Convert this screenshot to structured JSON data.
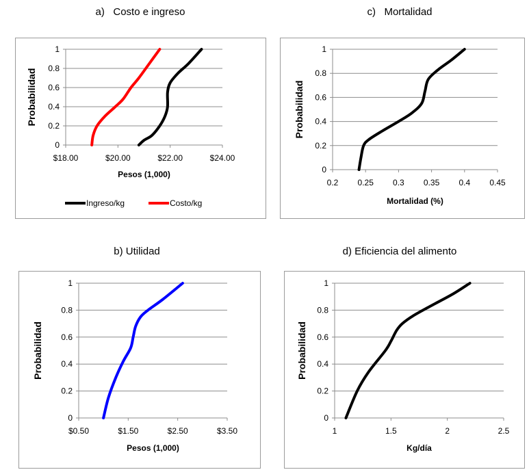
{
  "panels": [
    {
      "title": "a)   Costo e ingreso"
    },
    {
      "title": "c)   Mortalidad"
    },
    {
      "title": "b) Utilidad"
    },
    {
      "title": "d) Eficiencia del alimento"
    }
  ],
  "chart_data": [
    {
      "type": "line",
      "title": "a)   Costo e ingreso",
      "xlabel": "Pesos (1,000)",
      "ylabel": "Probabilidad",
      "xlim": [
        18,
        24
      ],
      "ylim": [
        0,
        1
      ],
      "x_ticks": [
        18,
        20,
        22,
        24
      ],
      "x_tick_labels": [
        "$18.00",
        "$20.00",
        "$22.00",
        "$24.00"
      ],
      "y_ticks": [
        0,
        0.2,
        0.4,
        0.6,
        0.8,
        1
      ],
      "y_tick_labels": [
        "0",
        "0.2",
        "0.4",
        "0.6",
        "0.8",
        "1"
      ],
      "grid": "horizontal",
      "legend": "bottom",
      "series": [
        {
          "name": "Ingreso/kg",
          "color": "#000000",
          "x": [
            20.8,
            21.0,
            21.3,
            21.6,
            21.8,
            21.9,
            21.9,
            22.0,
            22.3,
            22.7,
            23.2
          ],
          "y": [
            0,
            0.05,
            0.1,
            0.2,
            0.3,
            0.4,
            0.55,
            0.65,
            0.75,
            0.85,
            1
          ]
        },
        {
          "name": "Costo/kg",
          "color": "#ff0000",
          "x": [
            19.0,
            19.05,
            19.2,
            19.5,
            19.9,
            20.2,
            20.5,
            20.8,
            21.2,
            21.6
          ],
          "y": [
            0,
            0.1,
            0.2,
            0.3,
            0.4,
            0.48,
            0.6,
            0.7,
            0.85,
            1
          ]
        }
      ]
    },
    {
      "type": "line",
      "title": "c)   Mortalidad",
      "xlabel": "Mortalidad (%)",
      "ylabel": "Probabilidad",
      "xlim": [
        0.2,
        0.45
      ],
      "ylim": [
        0,
        1
      ],
      "x_ticks": [
        0.2,
        0.25,
        0.3,
        0.35,
        0.4,
        0.45
      ],
      "x_tick_labels": [
        "0.2",
        "0.25",
        "0.3",
        "0.35",
        "0.4",
        "0.45"
      ],
      "y_ticks": [
        0,
        0.2,
        0.4,
        0.6,
        0.8,
        1
      ],
      "y_tick_labels": [
        "0",
        "0.2",
        "0.4",
        "0.6",
        "0.8",
        "1"
      ],
      "grid": "horizontal",
      "series": [
        {
          "color": "#000000",
          "x": [
            0.24,
            0.243,
            0.247,
            0.255,
            0.275,
            0.3,
            0.32,
            0.335,
            0.34,
            0.345,
            0.36,
            0.38,
            0.4
          ],
          "y": [
            0,
            0.1,
            0.2,
            0.25,
            0.32,
            0.4,
            0.47,
            0.55,
            0.65,
            0.75,
            0.83,
            0.91,
            1
          ]
        }
      ]
    },
    {
      "type": "line",
      "title": "b) Utilidad",
      "xlabel": "Pesos (1,000)",
      "ylabel": "Probabilidad",
      "xlim": [
        0.5,
        3.5
      ],
      "ylim": [
        0,
        1
      ],
      "x_ticks": [
        0.5,
        1.5,
        2.5,
        3.5
      ],
      "x_tick_labels": [
        "$0.50",
        "$1.50",
        "$2.50",
        "$3.50"
      ],
      "y_ticks": [
        0,
        0.2,
        0.4,
        0.6,
        0.8,
        1
      ],
      "y_tick_labels": [
        "0",
        "0.2",
        "0.4",
        "0.6",
        "0.8",
        "1"
      ],
      "grid": "horizontal",
      "series": [
        {
          "color": "#0000ff",
          "x": [
            1.0,
            1.1,
            1.25,
            1.4,
            1.55,
            1.6,
            1.65,
            1.75,
            1.9,
            2.2,
            2.6
          ],
          "y": [
            0,
            0.15,
            0.3,
            0.42,
            0.52,
            0.6,
            0.68,
            0.75,
            0.8,
            0.88,
            1
          ]
        }
      ]
    },
    {
      "type": "line",
      "title": "d) Eficiencia del alimento",
      "xlabel": "Kg/día",
      "ylabel": "Probabilidad",
      "xlim": [
        1,
        2.5
      ],
      "ylim": [
        0,
        1
      ],
      "x_ticks": [
        1,
        1.5,
        2,
        2.5
      ],
      "x_tick_labels": [
        "1",
        "1.5",
        "2",
        "2.5"
      ],
      "y_ticks": [
        0,
        0.2,
        0.4,
        0.6,
        0.8,
        1
      ],
      "y_tick_labels": [
        "0",
        "0.2",
        "0.4",
        "0.6",
        "0.8",
        "1"
      ],
      "grid": "horizontal",
      "series": [
        {
          "color": "#000000",
          "x": [
            1.1,
            1.2,
            1.3,
            1.45,
            1.5,
            1.55,
            1.6,
            1.7,
            1.85,
            2.05,
            2.2
          ],
          "y": [
            0,
            0.2,
            0.34,
            0.5,
            0.57,
            0.65,
            0.7,
            0.76,
            0.83,
            0.92,
            1
          ]
        }
      ]
    }
  ]
}
